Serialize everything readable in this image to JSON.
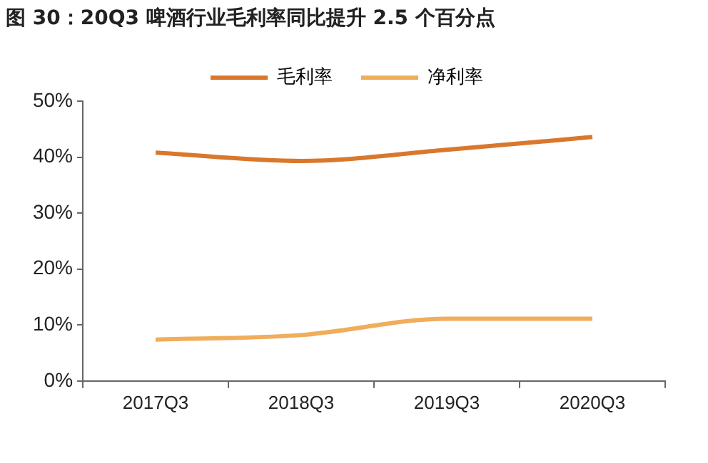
{
  "chart_data": {
    "type": "line",
    "title": "图 30：20Q3 啤酒行业毛利率同比提升 2.5 个百分点",
    "categories": [
      "2017Q3",
      "2018Q3",
      "2019Q3",
      "2020Q3"
    ],
    "series": [
      {
        "name": "毛利率",
        "color": "#d9782d",
        "values": [
          40.8,
          39.3,
          41.3,
          43.6
        ]
      },
      {
        "name": "净利率",
        "color": "#f0ad5c",
        "values": [
          7.4,
          8.2,
          11.1,
          11.1
        ]
      }
    ],
    "ylim": [
      0,
      50
    ],
    "yticks": [
      {
        "value": 0,
        "label": "0%"
      },
      {
        "value": 10,
        "label": "10%"
      },
      {
        "value": 20,
        "label": "20%"
      },
      {
        "value": 30,
        "label": "30%"
      },
      {
        "value": 40,
        "label": "40%"
      },
      {
        "value": 50,
        "label": "50%"
      }
    ],
    "grid": false,
    "legend": "top",
    "marker": "none",
    "line_style": "solid"
  }
}
